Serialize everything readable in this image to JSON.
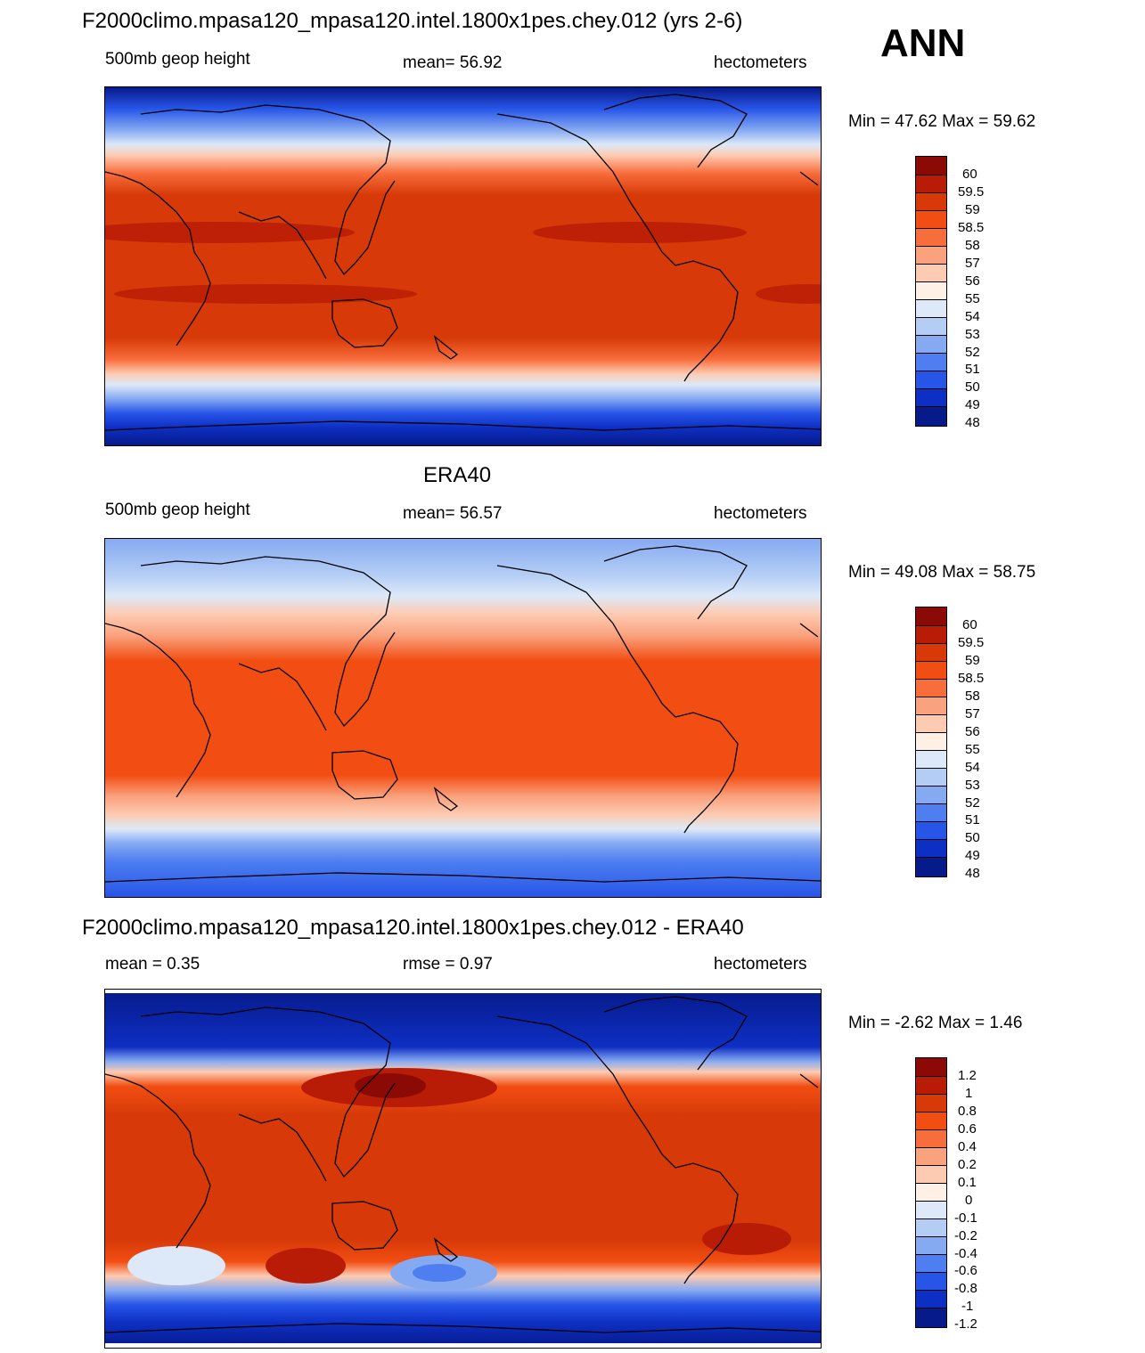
{
  "header": {
    "season": "ANN"
  },
  "panels": [
    {
      "id": "model",
      "title": "F2000climo.mpasa120_mpasa120.intel.1800x1pes.chey.012 (yrs 2-6)",
      "left_label": "500mb geop height",
      "center_label": "mean=  56.92",
      "right_label": "hectometers",
      "minmax": "Min =  47.62 Max =  59.62",
      "colorbar": {
        "labels": [
          "60",
          "59.5",
          "59",
          "58.5",
          "58",
          "57",
          "56",
          "55",
          "54",
          "53",
          "52",
          "51",
          "50",
          "49",
          "48"
        ],
        "colors": [
          "#8b0a05",
          "#b81c06",
          "#d73a08",
          "#f24e13",
          "#f86d3c",
          "#faa27e",
          "#fdcbb2",
          "#fef0e4",
          "#dde9f8",
          "#b4cdf5",
          "#86aaf2",
          "#4e7ef0",
          "#2755e8",
          "#0e2fc4",
          "#061a8a"
        ]
      }
    },
    {
      "id": "obs",
      "title": "ERA40",
      "left_label": "500mb geop height",
      "center_label": "mean=  56.57",
      "right_label": "hectometers",
      "minmax": "Min =  49.08 Max =  58.75",
      "colorbar": {
        "labels": [
          "60",
          "59.5",
          "59",
          "58.5",
          "58",
          "57",
          "56",
          "55",
          "54",
          "53",
          "52",
          "51",
          "50",
          "49",
          "48"
        ],
        "colors": [
          "#8b0a05",
          "#b81c06",
          "#d73a08",
          "#f24e13",
          "#f86d3c",
          "#faa27e",
          "#fdcbb2",
          "#fef0e4",
          "#dde9f8",
          "#b4cdf5",
          "#86aaf2",
          "#4e7ef0",
          "#2755e8",
          "#0e2fc4",
          "#061a8a"
        ]
      }
    },
    {
      "id": "diff",
      "title": "F2000climo.mpasa120_mpasa120.intel.1800x1pes.chey.012 - ERA40",
      "left_label": "mean =   0.35",
      "center_label": "rmse =   0.97",
      "right_label": "hectometers",
      "minmax": "Min =  -2.62 Max =   1.46",
      "colorbar": {
        "labels": [
          "1.2",
          "1",
          "0.8",
          "0.6",
          "0.4",
          "0.2",
          "0.1",
          "0",
          "-0.1",
          "-0.2",
          "-0.4",
          "-0.6",
          "-0.8",
          "-1",
          "-1.2"
        ],
        "colors": [
          "#8b0a05",
          "#b81c06",
          "#d73a08",
          "#f24e13",
          "#f86d3c",
          "#faa27e",
          "#fdcbb2",
          "#fef0e4",
          "#dde9f8",
          "#b4cdf5",
          "#86aaf2",
          "#4e7ef0",
          "#2755e8",
          "#0e2fc4",
          "#061a8a"
        ]
      }
    }
  ]
}
